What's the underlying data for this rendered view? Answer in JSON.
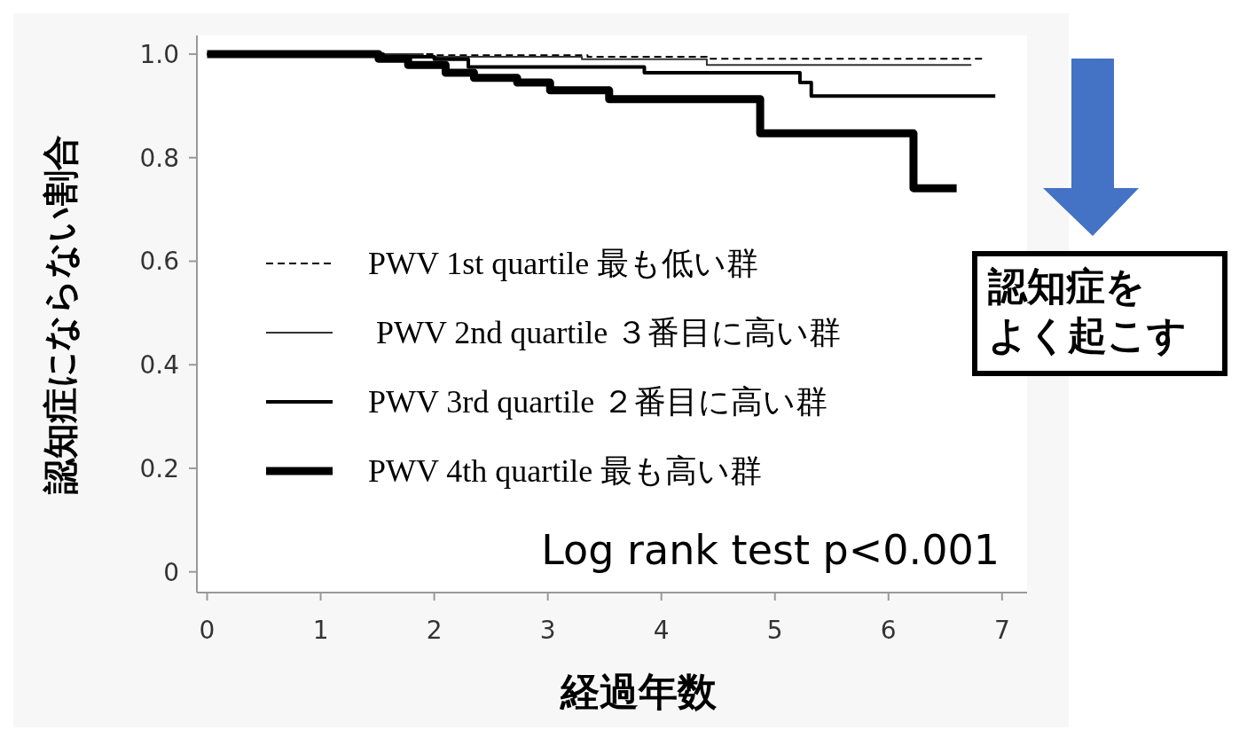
{
  "chart_data": {
    "type": "step",
    "xlabel": "経過年数",
    "ylabel": "認知症にならない割合",
    "xlim": [
      -0.09,
      7.22
    ],
    "ylim": [
      -0.04,
      1.036
    ],
    "xticks": [
      0,
      1,
      2,
      3,
      4,
      5,
      6,
      7
    ],
    "yticks": [
      0,
      0.2,
      0.4,
      0.6,
      0.8,
      {
        "value": 1,
        "label": "1.0"
      }
    ],
    "grid": false,
    "legend": "left",
    "series": [
      {
        "name": "PWV 1st quartile 最も低い群",
        "color": "#000000",
        "line_style": "dashed",
        "x": [
          0,
          2.0,
          3.35,
          4.4,
          6.83
        ],
        "values": [
          1,
          0.998,
          0.995,
          0.991,
          0.991
        ]
      },
      {
        "name": " PWV 2nd quartile ３番目に高い群",
        "color": "#333333",
        "line_style": "solid",
        "x": [
          0,
          1.9,
          3.3,
          4.4,
          6.73
        ],
        "values": [
          1,
          0.995,
          0.99,
          0.979,
          0.979
        ]
      },
      {
        "name": "PWV 3rd quartile ２番目に高い群",
        "color": "#000000",
        "line_style": "solid",
        "x": [
          0,
          1.55,
          2.0,
          2.3,
          3.85,
          5.22,
          5.32,
          6.94
        ],
        "values": [
          1,
          0.995,
          0.99,
          0.975,
          0.964,
          0.945,
          0.919,
          0.919
        ]
      },
      {
        "name": "PWV 4th quartile 最も高い群",
        "color": "#000000",
        "line_style": "solid",
        "x": [
          0,
          1.51,
          1.77,
          2.1,
          2.35,
          2.73,
          3.02,
          3.54,
          4.87,
          6.22,
          6.6
        ],
        "values": [
          1,
          0.991,
          0.979,
          0.964,
          0.954,
          0.945,
          0.93,
          0.913,
          0.847,
          0.741,
          0.741
        ]
      }
    ],
    "annotations": [
      "Log rank test p<0.001",
      "認知症を",
      "よく起こす"
    ]
  }
}
